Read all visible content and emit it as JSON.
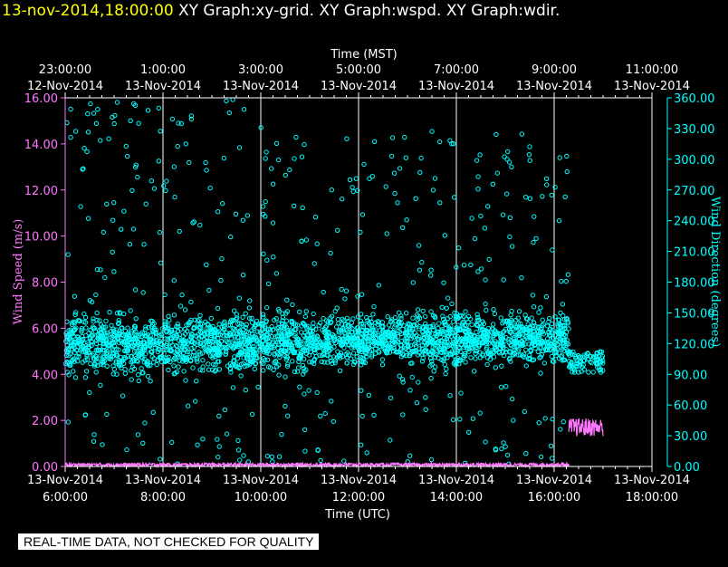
{
  "header": {
    "datetime": "13-nov-2014,18:00:00",
    "graphs": "XY Graph:xy-grid.  XY Graph:wspd.  XY Graph:wdir."
  },
  "notice": "REAL-TIME DATA, NOT CHECKED FOR QUALITY",
  "colors": {
    "speed": "#ff77ff",
    "direction": "#00ffff",
    "grid": "#ffffff",
    "background": "#000000"
  },
  "chart_data": {
    "type": "scatter",
    "top_axis": {
      "title": "Time (MST)",
      "ticks": [
        {
          "time": "23:00:00",
          "date": "12-Nov-2014"
        },
        {
          "time": "1:00:00",
          "date": "13-Nov-2014"
        },
        {
          "time": "3:00:00",
          "date": "13-Nov-2014"
        },
        {
          "time": "5:00:00",
          "date": "13-Nov-2014"
        },
        {
          "time": "7:00:00",
          "date": "13-Nov-2014"
        },
        {
          "time": "9:00:00",
          "date": "13-Nov-2014"
        },
        {
          "time": "11:00:00",
          "date": "13-Nov-2014"
        }
      ]
    },
    "bottom_axis": {
      "title": "Time (UTC)",
      "ticks": [
        {
          "date": "13-Nov-2014",
          "time": "6:00:00"
        },
        {
          "date": "13-Nov-2014",
          "time": "8:00:00"
        },
        {
          "date": "13-Nov-2014",
          "time": "10:00:00"
        },
        {
          "date": "13-Nov-2014",
          "time": "12:00:00"
        },
        {
          "date": "13-Nov-2014",
          "time": "14:00:00"
        },
        {
          "date": "13-Nov-2014",
          "time": "16:00:00"
        },
        {
          "date": "13-Nov-2014",
          "time": "18:00:00"
        }
      ],
      "range_hours_utc": [
        6,
        18
      ]
    },
    "left_axis": {
      "title": "Wind Speed (m/s)",
      "ticks": [
        "0.00",
        "2.00",
        "4.00",
        "6.00",
        "8.00",
        "10.00",
        "12.00",
        "14.00",
        "16.00"
      ],
      "range": [
        0,
        16
      ]
    },
    "right_axis": {
      "title": "Wind Direction (degrees)",
      "ticks": [
        "0.00",
        "30.00",
        "60.00",
        "90.00",
        "120.00",
        "150.00",
        "180.00",
        "210.00",
        "240.00",
        "270.00",
        "300.00",
        "330.00",
        "360.00"
      ],
      "range": [
        0,
        360
      ]
    },
    "grid": true,
    "series": [
      {
        "color": "#ff77ff",
        "axis": "left",
        "style": "line",
        "segments": [
          {
            "from_hour": 6.0,
            "to_hour": 16.3,
            "value_range": [
              0.0,
              0.15
            ]
          },
          {
            "from_hour": 16.3,
            "to_hour": 17.0,
            "value_range": [
              1.3,
              2.1
            ]
          }
        ]
      },
      {
        "color": "#00ffff",
        "axis": "right",
        "style": "circles",
        "clusters": [
          {
            "from_hour": 6.0,
            "to_hour": 10.0,
            "core_range": [
              90,
              150
            ],
            "scatter_range": [
              0,
              360
            ]
          },
          {
            "from_hour": 10.0,
            "to_hour": 12.1,
            "core_range": [
              95,
              150
            ],
            "scatter_range": [
              0,
              340
            ]
          },
          {
            "from_hour": 12.1,
            "to_hour": 16.3,
            "core_range": [
              100,
              150
            ],
            "scatter_range": [
              0,
              330
            ]
          },
          {
            "from_hour": 16.3,
            "to_hour": 17.0,
            "core_range": [
              95,
              110
            ],
            "scatter_range": [
              92,
              112
            ]
          }
        ]
      }
    ]
  }
}
